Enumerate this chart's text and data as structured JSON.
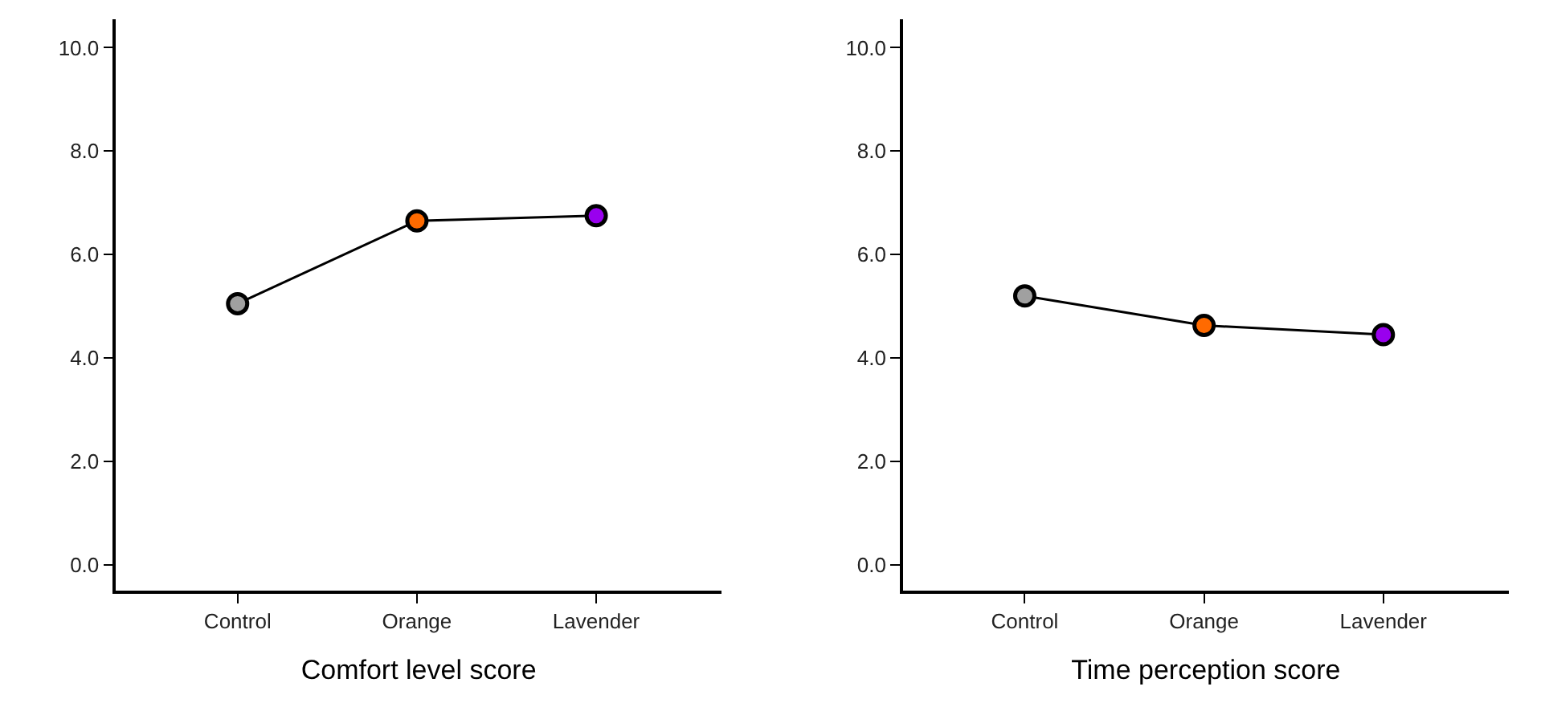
{
  "chart_data": [
    {
      "type": "line",
      "xlabel": "Comfort level score",
      "categories": [
        "Control",
        "Orange",
        "Lavender"
      ],
      "series": [
        {
          "color": "#000000",
          "colors": [
            "#a0a0a0",
            "#ff6a00",
            "#9900ee"
          ],
          "values": [
            5.05,
            6.65,
            6.75
          ]
        }
      ],
      "ylim": [
        -0.5,
        10.55
      ],
      "yticks": [
        {
          "value": 0,
          "label": "0.0"
        },
        {
          "value": 2,
          "label": "2.0"
        },
        {
          "value": 4,
          "label": "4.0"
        },
        {
          "value": 6,
          "label": "6.0"
        },
        {
          "value": 8,
          "label": "8.0"
        },
        {
          "value": 10,
          "label": "10.0"
        }
      ],
      "marker": "circle",
      "line_style": "solid"
    },
    {
      "type": "line",
      "xlabel": "Time perception score",
      "categories": [
        "Control",
        "Orange",
        "Lavender"
      ],
      "series": [
        {
          "color": "#000000",
          "colors": [
            "#a0a0a0",
            "#ff6a00",
            "#9900ee"
          ],
          "values": [
            5.2,
            4.63,
            4.45
          ]
        }
      ],
      "ylim": [
        -0.5,
        10.55
      ],
      "yticks": [
        {
          "value": 0,
          "label": "0.0"
        },
        {
          "value": 2,
          "label": "2.0"
        },
        {
          "value": 4,
          "label": "4.0"
        },
        {
          "value": 6,
          "label": "6.0"
        },
        {
          "value": 8,
          "label": "8.0"
        },
        {
          "value": 10,
          "label": "10.0"
        }
      ],
      "marker": "circle",
      "line_style": "solid"
    }
  ]
}
